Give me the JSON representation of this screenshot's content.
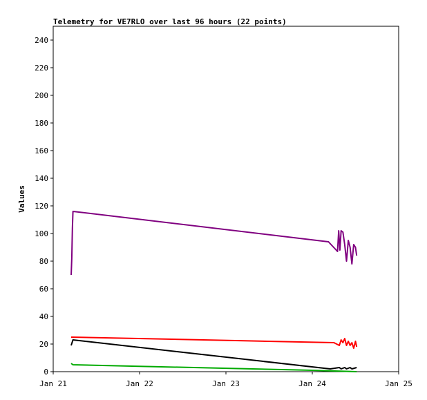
{
  "chart_data": {
    "type": "line",
    "title": "Telemetry for VE7RLO over last 96 hours (22 points)",
    "xlabel": "",
    "ylabel": "Values",
    "xlim": [
      "Jan 21",
      "Jan 25"
    ],
    "ylim": [
      0,
      250
    ],
    "x_tick_labels": [
      "Jan 21",
      "Jan 22",
      "Jan 23",
      "Jan 24",
      "Jan 25"
    ],
    "y_ticks": [
      0,
      20,
      40,
      60,
      80,
      100,
      120,
      140,
      160,
      180,
      200,
      220,
      240
    ],
    "grid": false,
    "legend": "none",
    "series": [
      {
        "color": "#800080",
        "points": [
          [
            "Jan 21 05:00",
            70
          ],
          [
            "Jan 21 05:10",
            82
          ],
          [
            "Jan 21 05:20",
            104
          ],
          [
            "Jan 21 05:30",
            116
          ],
          [
            "Jan 24 04:30",
            94
          ],
          [
            "Jan 24 07:00",
            87
          ],
          [
            "Jan 24 07:20",
            102
          ],
          [
            "Jan 24 07:40",
            88
          ],
          [
            "Jan 24 08:00",
            102
          ],
          [
            "Jan 24 08:30",
            101
          ],
          [
            "Jan 24 09:00",
            92
          ],
          [
            "Jan 24 09:30",
            80
          ],
          [
            "Jan 24 10:00",
            95
          ],
          [
            "Jan 24 10:30",
            90
          ],
          [
            "Jan 24 11:00",
            78
          ],
          [
            "Jan 24 11:30",
            92
          ],
          [
            "Jan 24 12:00",
            90
          ],
          [
            "Jan 24 12:20",
            84
          ]
        ]
      },
      {
        "color": "#ff0000",
        "points": [
          [
            "Jan 21 05:00",
            25
          ],
          [
            "Jan 21 05:30",
            25
          ],
          [
            "Jan 24 06:00",
            21
          ],
          [
            "Jan 24 07:30",
            19
          ],
          [
            "Jan 24 08:00",
            23
          ],
          [
            "Jan 24 08:30",
            21
          ],
          [
            "Jan 24 09:00",
            24
          ],
          [
            "Jan 24 09:30",
            19
          ],
          [
            "Jan 24 10:00",
            22
          ],
          [
            "Jan 24 10:30",
            19
          ],
          [
            "Jan 24 11:00",
            21
          ],
          [
            "Jan 24 11:30",
            17
          ],
          [
            "Jan 24 12:00",
            22
          ],
          [
            "Jan 24 12:20",
            18
          ]
        ]
      },
      {
        "color": "#000000",
        "points": [
          [
            "Jan 21 05:00",
            19
          ],
          [
            "Jan 21 05:30",
            23
          ],
          [
            "Jan 24 05:00",
            2
          ],
          [
            "Jan 24 07:30",
            3
          ],
          [
            "Jan 24 08:00",
            2
          ],
          [
            "Jan 24 09:00",
            3
          ],
          [
            "Jan 24 09:30",
            2
          ],
          [
            "Jan 24 10:30",
            3
          ],
          [
            "Jan 24 11:00",
            2
          ],
          [
            "Jan 24 12:20",
            3
          ]
        ]
      },
      {
        "color": "#00aa00",
        "points": [
          [
            "Jan 21 05:00",
            6
          ],
          [
            "Jan 21 05:30",
            5
          ],
          [
            "Jan 24 00:00",
            1
          ],
          [
            "Jan 24 12:20",
            0
          ]
        ]
      }
    ]
  }
}
